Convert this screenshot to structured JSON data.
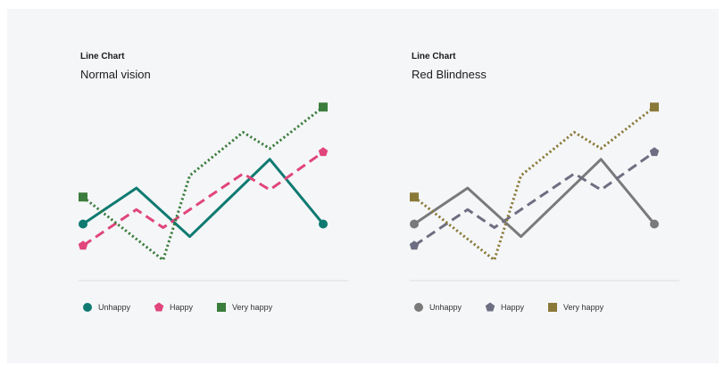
{
  "chart_data": [
    {
      "type": "line",
      "eyebrow": "Line Chart",
      "title": "Normal vision",
      "x": [
        0,
        1,
        2,
        3,
        4,
        5,
        6,
        7,
        8
      ],
      "ylim": [
        0,
        100
      ],
      "grid": false,
      "legend_position": "bottom-left",
      "series": [
        {
          "name": "Unhappy",
          "color": "#0e7a71",
          "style": "solid",
          "marker": "circle",
          "points": [
            [
              0,
              25
            ],
            [
              2,
              45
            ],
            [
              4,
              18
            ],
            [
              7,
              61
            ],
            [
              8,
              43
            ],
            [
              9,
              25
            ]
          ]
        },
        {
          "name": "Happy",
          "color": "#e0457b",
          "style": "dashed",
          "marker": "pentagon",
          "points": [
            [
              0,
              13
            ],
            [
              2,
              33
            ],
            [
              3,
              23
            ],
            [
              6,
              53
            ],
            [
              7,
              44
            ],
            [
              9,
              65
            ]
          ]
        },
        {
          "name": "Very happy",
          "color": "#3b7d3c",
          "style": "dotted",
          "marker": "square",
          "points": [
            [
              0,
              40
            ],
            [
              3,
              5
            ],
            [
              4,
              52
            ],
            [
              6,
              76
            ],
            [
              7,
              67
            ],
            [
              9,
              90
            ]
          ]
        }
      ]
    },
    {
      "type": "line",
      "eyebrow": "Line Chart",
      "title": "Red Blindness",
      "x": [
        0,
        1,
        2,
        3,
        4,
        5,
        6,
        7,
        8
      ],
      "ylim": [
        0,
        100
      ],
      "grid": false,
      "legend_position": "bottom-left",
      "series": [
        {
          "name": "Unhappy",
          "color": "#7a7a7a",
          "style": "solid",
          "marker": "circle",
          "points": [
            [
              0,
              25
            ],
            [
              2,
              45
            ],
            [
              4,
              18
            ],
            [
              7,
              61
            ],
            [
              8,
              43
            ],
            [
              9,
              25
            ]
          ]
        },
        {
          "name": "Happy",
          "color": "#6e6e82",
          "style": "dashed",
          "marker": "pentagon",
          "points": [
            [
              0,
              13
            ],
            [
              2,
              33
            ],
            [
              3,
              23
            ],
            [
              6,
              53
            ],
            [
              7,
              44
            ],
            [
              9,
              65
            ]
          ]
        },
        {
          "name": "Very happy",
          "color": "#8a7a3a",
          "style": "dotted",
          "marker": "square",
          "points": [
            [
              0,
              40
            ],
            [
              3,
              5
            ],
            [
              4,
              52
            ],
            [
              6,
              76
            ],
            [
              7,
              67
            ],
            [
              9,
              90
            ]
          ]
        }
      ]
    }
  ]
}
